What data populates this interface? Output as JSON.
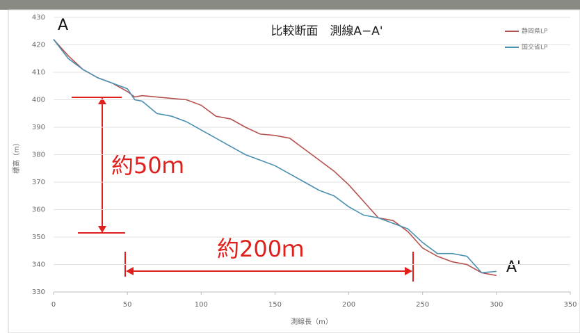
{
  "chart_data": {
    "type": "line",
    "title": "比較断面　測線A−A'",
    "x_label": "測線長（m）",
    "y_label": "標高（m）",
    "xlim": [
      0,
      350
    ],
    "xticks": [
      0,
      50,
      100,
      150,
      200,
      250,
      300,
      350
    ],
    "ylim": [
      330,
      430
    ],
    "yticks": [
      330,
      340,
      350,
      360,
      370,
      380,
      390,
      400,
      410,
      420,
      430
    ],
    "grid": true,
    "legend": "upper right",
    "x": [
      0,
      10,
      20,
      30,
      40,
      50,
      55,
      60,
      70,
      80,
      90,
      100,
      110,
      120,
      130,
      140,
      150,
      160,
      170,
      180,
      190,
      200,
      210,
      220,
      230,
      240,
      250,
      260,
      270,
      280,
      290,
      300
    ],
    "series": [
      {
        "name": "静岡県LP",
        "color": "#b5514f",
        "values": [
          422,
          416,
          411,
          408,
          406,
          403,
          401,
          401.5,
          401,
          400.5,
          400,
          398,
          394,
          393,
          390,
          387.5,
          387,
          386,
          382,
          378,
          374,
          369,
          363,
          357,
          356,
          352,
          346,
          343,
          341,
          340,
          337,
          336
        ]
      },
      {
        "name": "国交省LP",
        "color": "#4a8fb0",
        "values": [
          422,
          415,
          411,
          408,
          406,
          404,
          400,
          399.5,
          395,
          394,
          392,
          389,
          386,
          383,
          380,
          378,
          376,
          373,
          370,
          367,
          365,
          361,
          358,
          357,
          355,
          353,
          348,
          344,
          344,
          343,
          337,
          337.5
        ]
      }
    ],
    "annotations": [
      "A",
      "A'",
      "約50ｍ",
      "約200ｍ"
    ]
  }
}
